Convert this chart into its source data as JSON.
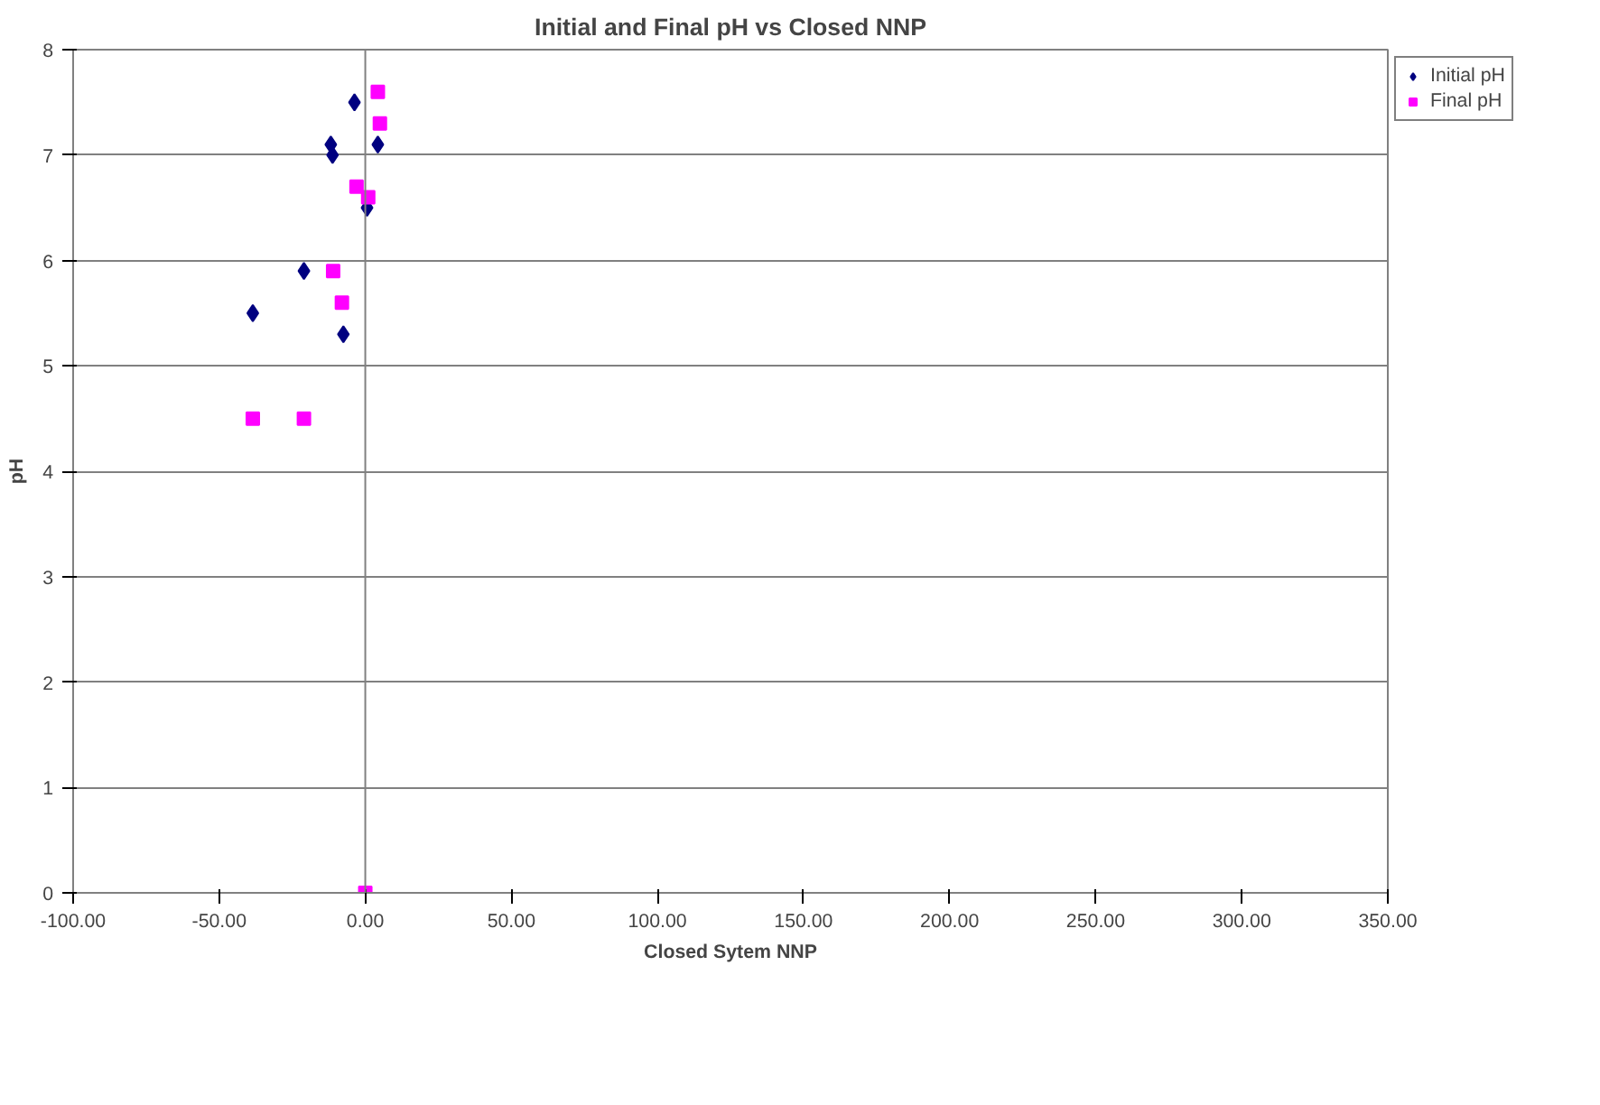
{
  "chart_data": {
    "type": "scatter",
    "title": "Initial and Final pH vs Closed NNP",
    "xlabel": "Closed Sytem NNP",
    "ylabel": "pH",
    "xlim": [
      -100,
      350
    ],
    "ylim": [
      0,
      8
    ],
    "xticks": [
      {
        "value": -100,
        "label": "-100.00"
      },
      {
        "value": -50,
        "label": "-50.00"
      },
      {
        "value": 0,
        "label": "0.00"
      },
      {
        "value": 50,
        "label": "50.00"
      },
      {
        "value": 100,
        "label": "100.00"
      },
      {
        "value": 150,
        "label": "150.00"
      },
      {
        "value": 200,
        "label": "200.00"
      },
      {
        "value": 250,
        "label": "250.00"
      },
      {
        "value": 300,
        "label": "300.00"
      },
      {
        "value": 350,
        "label": "350.00"
      }
    ],
    "yticks": [
      0,
      1,
      2,
      3,
      4,
      5,
      6,
      7,
      8
    ],
    "grid": "y",
    "legend": "right",
    "ref_lines": [
      {
        "axis": "x",
        "value": 0
      }
    ],
    "series": [
      {
        "name": "Initial pH",
        "color": "#000080",
        "marker": "diamond",
        "x": [
          -3.7,
          -11.8,
          -11.2,
          4.3,
          0.6,
          -21,
          -38.5,
          -7.5
        ],
        "values": [
          7.5,
          7.1,
          7.0,
          7.1,
          6.5,
          5.9,
          5.5,
          5.3
        ]
      },
      {
        "name": "Final pH",
        "color": "#ff00ff",
        "marker": "square",
        "x": [
          4.3,
          5,
          -3,
          1,
          -11,
          -8,
          -38.5,
          -21,
          0
        ],
        "values": [
          7.6,
          7.3,
          6.7,
          6.6,
          5.9,
          5.6,
          4.5,
          4.5,
          0
        ]
      }
    ]
  }
}
